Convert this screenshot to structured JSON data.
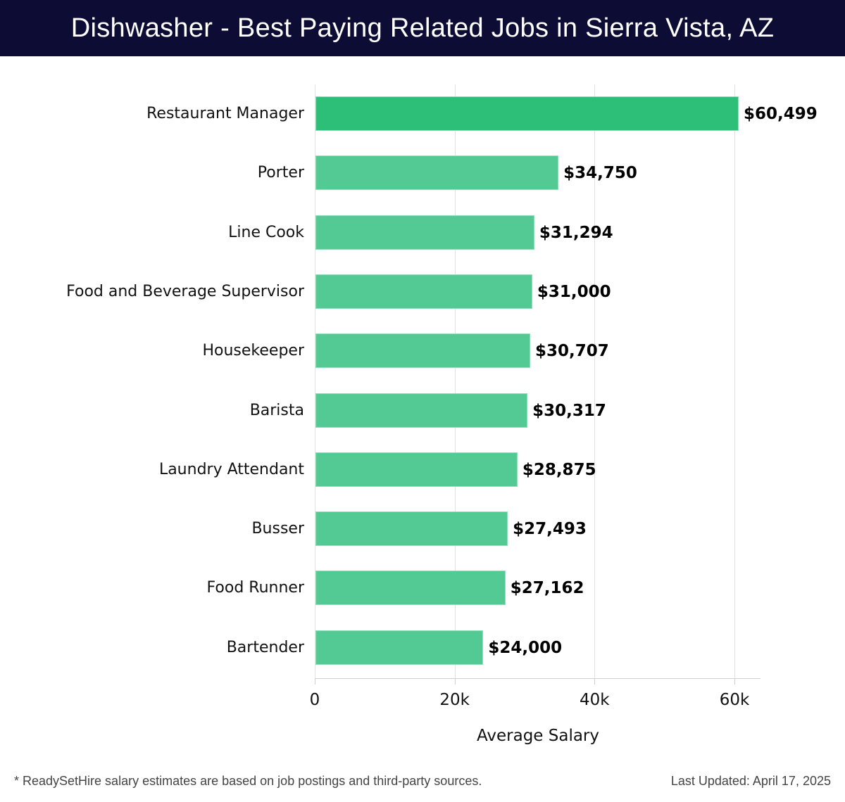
{
  "header": {
    "title": "Dishwasher - Best Paying Related Jobs in Sierra Vista, AZ"
  },
  "chart_data": {
    "type": "bar",
    "orientation": "horizontal",
    "title": "Dishwasher - Best Paying Related Jobs in Sierra Vista, AZ",
    "xlabel": "Average Salary",
    "ylabel": "",
    "xlim": [
      0,
      63700
    ],
    "xticks": [
      0,
      20000,
      40000,
      60000
    ],
    "xtick_labels": [
      "0",
      "20k",
      "40k",
      "60k"
    ],
    "grid": true,
    "legend": "none",
    "categories": [
      "Restaurant Manager",
      "Porter",
      "Line Cook",
      "Food and Beverage Supervisor",
      "Housekeeper",
      "Barista",
      "Laundry Attendant",
      "Busser",
      "Food Runner",
      "Bartender"
    ],
    "values": [
      60499,
      34750,
      31294,
      31000,
      30707,
      30317,
      28875,
      27493,
      27162,
      24000
    ],
    "value_labels": [
      "$60,499",
      "$34,750",
      "$31,294",
      "$31,000",
      "$30,707",
      "$30,317",
      "$28,875",
      "$27,493",
      "$27,162",
      "$24,000"
    ],
    "colors": {
      "highlight": "#2dbe78",
      "default": "#53c994"
    }
  },
  "axis": {
    "ticks": [
      "0",
      "20k",
      "40k",
      "60k"
    ],
    "xlabel": "Average Salary"
  },
  "footer": {
    "note": "* ReadySetHire salary estimates are based on job postings and third-party sources.",
    "updated": "Last Updated: April 17, 2025"
  }
}
